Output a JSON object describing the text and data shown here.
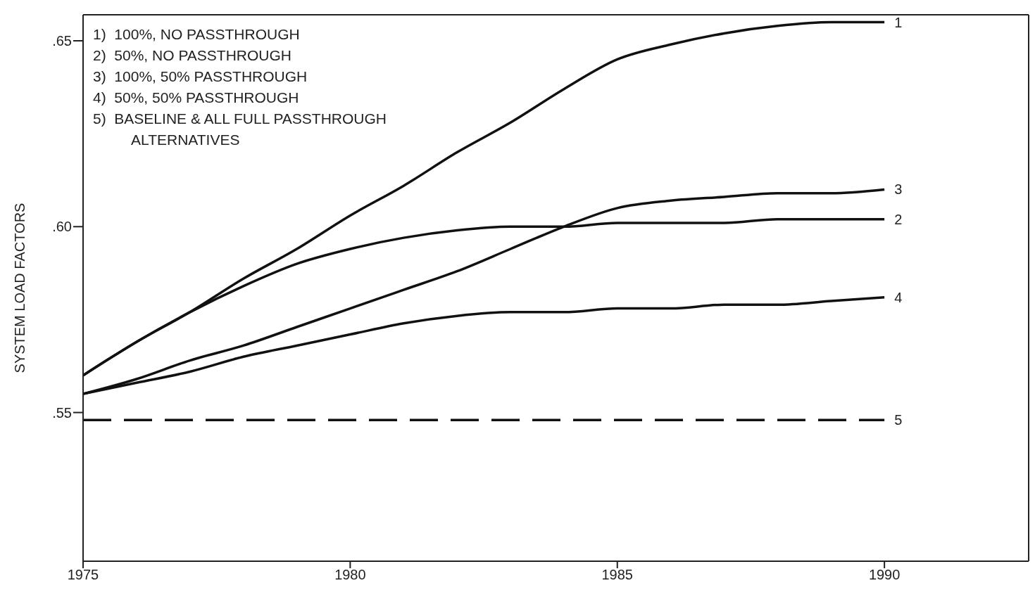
{
  "chart_data": {
    "type": "line",
    "ylabel": "SYSTEM LOAD FACTORS",
    "x": [
      1975,
      1976,
      1977,
      1978,
      1979,
      1980,
      1981,
      1982,
      1983,
      1984,
      1985,
      1986,
      1987,
      1988,
      1989,
      1990
    ],
    "series": [
      {
        "name": "1",
        "color": "#111111",
        "values": [
          0.56,
          0.569,
          0.577,
          0.586,
          0.594,
          0.603,
          0.611,
          0.62,
          0.628,
          0.637,
          0.645,
          0.649,
          0.652,
          0.654,
          0.655,
          0.655
        ]
      },
      {
        "name": "2",
        "color": "#111111",
        "values": [
          0.56,
          0.569,
          0.577,
          0.584,
          0.59,
          0.594,
          0.597,
          0.599,
          0.6,
          0.6,
          0.601,
          0.601,
          0.601,
          0.602,
          0.602,
          0.602
        ]
      },
      {
        "name": "3",
        "color": "#111111",
        "values": [
          0.555,
          0.559,
          0.564,
          0.568,
          0.573,
          0.578,
          0.583,
          0.588,
          0.594,
          0.6,
          0.605,
          0.607,
          0.608,
          0.609,
          0.609,
          0.61
        ]
      },
      {
        "name": "4",
        "color": "#111111",
        "values": [
          0.555,
          0.558,
          0.561,
          0.565,
          0.568,
          0.571,
          0.574,
          0.576,
          0.577,
          0.577,
          0.578,
          0.578,
          0.579,
          0.579,
          0.58,
          0.581
        ]
      },
      {
        "name": "5",
        "color": "#111111",
        "x": [
          1975,
          1990
        ],
        "values": [
          0.548,
          0.548
        ],
        "line_style": "dashed"
      }
    ],
    "xlim": [
      1975,
      1992.7
    ],
    "xticks": [
      1975,
      1980,
      1985,
      1990
    ],
    "ylim": [
      0.51,
      0.657
    ],
    "yticks": [
      {
        "value": 0.55,
        "label": ".55"
      },
      {
        "value": 0.6,
        "label": ".60"
      },
      {
        "value": 0.65,
        "label": ".65"
      }
    ],
    "grid": false,
    "legend": false,
    "marker": "none",
    "line_style": "solid",
    "annotations": [
      "1)  100%, NO PASSTHROUGH",
      "2)  50%, NO PASSTHROUGH",
      "3)  100%, 50% PASSTHROUGH",
      "4)  50%, 50% PASSTHROUGH",
      "5)  BASELINE & ALL FULL PASSTHROUGH ALTERNATIVES"
    ]
  }
}
